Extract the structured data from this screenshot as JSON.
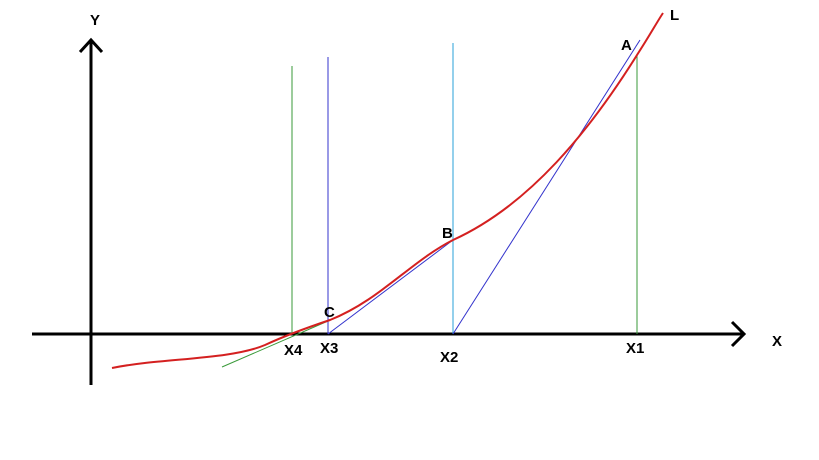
{
  "axes": {
    "x": "X",
    "y": "Y"
  },
  "curve": {
    "label": "L"
  },
  "points": [
    {
      "label": "A"
    },
    {
      "label": "B"
    },
    {
      "label": "C"
    }
  ],
  "x_marks": [
    {
      "label": "X1"
    },
    {
      "label": "X2"
    },
    {
      "label": "X3"
    },
    {
      "label": "X4"
    }
  ]
}
